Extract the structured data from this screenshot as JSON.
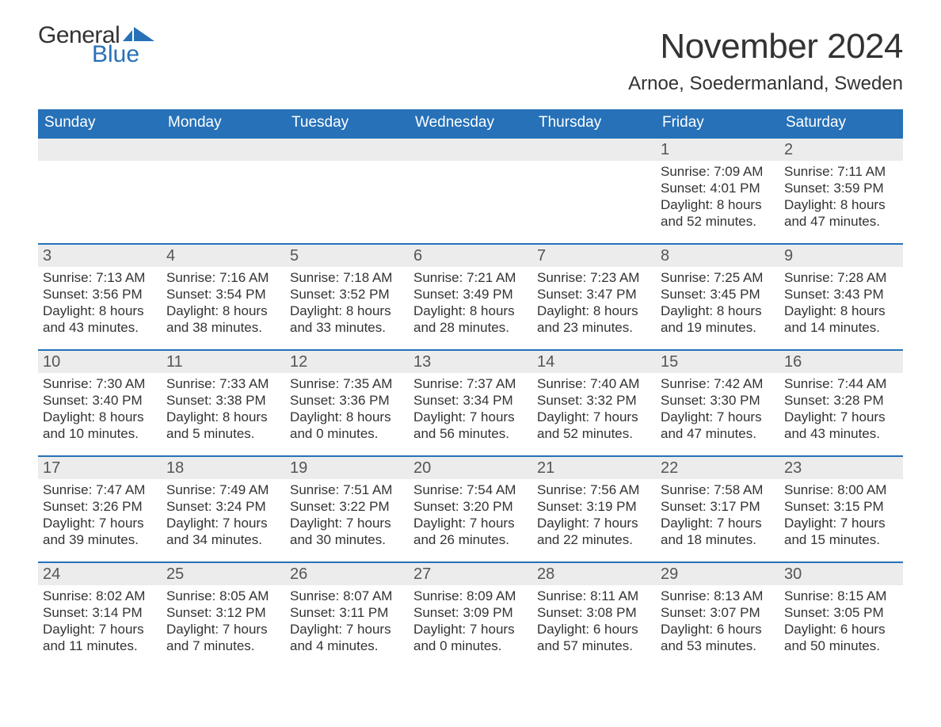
{
  "brand": {
    "part1": "General",
    "part2": "Blue",
    "flag_color": "#2671b8"
  },
  "colors": {
    "header_bg": "#2671b8",
    "header_text": "#ffffff",
    "daynum_bg": "#ececec",
    "text": "#333333",
    "week_border": "#2671b8",
    "page_bg": "#ffffff"
  },
  "title": "November 2024",
  "location": "Arnoe, Soedermanland, Sweden",
  "days_of_week": [
    "Sunday",
    "Monday",
    "Tuesday",
    "Wednesday",
    "Thursday",
    "Friday",
    "Saturday"
  ],
  "weeks": [
    [
      {
        "empty": true
      },
      {
        "empty": true
      },
      {
        "empty": true
      },
      {
        "empty": true
      },
      {
        "empty": true
      },
      {
        "n": "1",
        "sunrise": "7:09 AM",
        "sunset": "4:01 PM",
        "daylight": "8 hours and 52 minutes."
      },
      {
        "n": "2",
        "sunrise": "7:11 AM",
        "sunset": "3:59 PM",
        "daylight": "8 hours and 47 minutes."
      }
    ],
    [
      {
        "n": "3",
        "sunrise": "7:13 AM",
        "sunset": "3:56 PM",
        "daylight": "8 hours and 43 minutes."
      },
      {
        "n": "4",
        "sunrise": "7:16 AM",
        "sunset": "3:54 PM",
        "daylight": "8 hours and 38 minutes."
      },
      {
        "n": "5",
        "sunrise": "7:18 AM",
        "sunset": "3:52 PM",
        "daylight": "8 hours and 33 minutes."
      },
      {
        "n": "6",
        "sunrise": "7:21 AM",
        "sunset": "3:49 PM",
        "daylight": "8 hours and 28 minutes."
      },
      {
        "n": "7",
        "sunrise": "7:23 AM",
        "sunset": "3:47 PM",
        "daylight": "8 hours and 23 minutes."
      },
      {
        "n": "8",
        "sunrise": "7:25 AM",
        "sunset": "3:45 PM",
        "daylight": "8 hours and 19 minutes."
      },
      {
        "n": "9",
        "sunrise": "7:28 AM",
        "sunset": "3:43 PM",
        "daylight": "8 hours and 14 minutes."
      }
    ],
    [
      {
        "n": "10",
        "sunrise": "7:30 AM",
        "sunset": "3:40 PM",
        "daylight": "8 hours and 10 minutes."
      },
      {
        "n": "11",
        "sunrise": "7:33 AM",
        "sunset": "3:38 PM",
        "daylight": "8 hours and 5 minutes."
      },
      {
        "n": "12",
        "sunrise": "7:35 AM",
        "sunset": "3:36 PM",
        "daylight": "8 hours and 0 minutes."
      },
      {
        "n": "13",
        "sunrise": "7:37 AM",
        "sunset": "3:34 PM",
        "daylight": "7 hours and 56 minutes."
      },
      {
        "n": "14",
        "sunrise": "7:40 AM",
        "sunset": "3:32 PM",
        "daylight": "7 hours and 52 minutes."
      },
      {
        "n": "15",
        "sunrise": "7:42 AM",
        "sunset": "3:30 PM",
        "daylight": "7 hours and 47 minutes."
      },
      {
        "n": "16",
        "sunrise": "7:44 AM",
        "sunset": "3:28 PM",
        "daylight": "7 hours and 43 minutes."
      }
    ],
    [
      {
        "n": "17",
        "sunrise": "7:47 AM",
        "sunset": "3:26 PM",
        "daylight": "7 hours and 39 minutes."
      },
      {
        "n": "18",
        "sunrise": "7:49 AM",
        "sunset": "3:24 PM",
        "daylight": "7 hours and 34 minutes."
      },
      {
        "n": "19",
        "sunrise": "7:51 AM",
        "sunset": "3:22 PM",
        "daylight": "7 hours and 30 minutes."
      },
      {
        "n": "20",
        "sunrise": "7:54 AM",
        "sunset": "3:20 PM",
        "daylight": "7 hours and 26 minutes."
      },
      {
        "n": "21",
        "sunrise": "7:56 AM",
        "sunset": "3:19 PM",
        "daylight": "7 hours and 22 minutes."
      },
      {
        "n": "22",
        "sunrise": "7:58 AM",
        "sunset": "3:17 PM",
        "daylight": "7 hours and 18 minutes."
      },
      {
        "n": "23",
        "sunrise": "8:00 AM",
        "sunset": "3:15 PM",
        "daylight": "7 hours and 15 minutes."
      }
    ],
    [
      {
        "n": "24",
        "sunrise": "8:02 AM",
        "sunset": "3:14 PM",
        "daylight": "7 hours and 11 minutes."
      },
      {
        "n": "25",
        "sunrise": "8:05 AM",
        "sunset": "3:12 PM",
        "daylight": "7 hours and 7 minutes."
      },
      {
        "n": "26",
        "sunrise": "8:07 AM",
        "sunset": "3:11 PM",
        "daylight": "7 hours and 4 minutes."
      },
      {
        "n": "27",
        "sunrise": "8:09 AM",
        "sunset": "3:09 PM",
        "daylight": "7 hours and 0 minutes."
      },
      {
        "n": "28",
        "sunrise": "8:11 AM",
        "sunset": "3:08 PM",
        "daylight": "6 hours and 57 minutes."
      },
      {
        "n": "29",
        "sunrise": "8:13 AM",
        "sunset": "3:07 PM",
        "daylight": "6 hours and 53 minutes."
      },
      {
        "n": "30",
        "sunrise": "8:15 AM",
        "sunset": "3:05 PM",
        "daylight": "6 hours and 50 minutes."
      }
    ]
  ],
  "labels": {
    "sunrise": "Sunrise: ",
    "sunset": "Sunset: ",
    "daylight": "Daylight: "
  }
}
